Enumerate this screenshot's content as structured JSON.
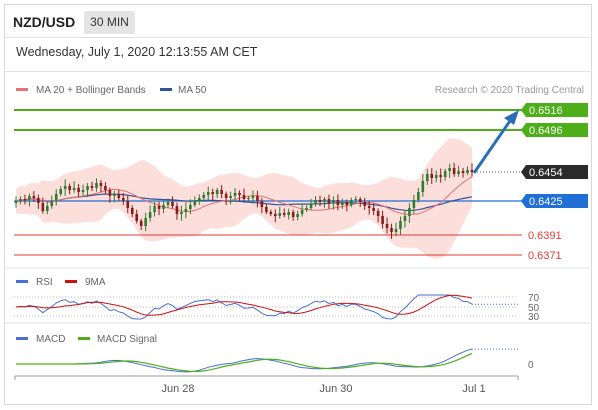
{
  "header": {
    "symbol": "NZD/USD",
    "timeframe": "30 MIN",
    "datetime": "Wednesday, July 1, 2020 12:13:55 AM CET"
  },
  "legend": {
    "ma20_bb": "MA 20 + Bollinger Bands",
    "ma50": "MA 50",
    "copyright": "Research © 2020 Trading Central"
  },
  "colors": {
    "up_candle": "#2e7d32",
    "down_candle": "#8b1a1a",
    "ma20": "#e57373",
    "ma50": "#2f5597",
    "bb_fill": "#fbd3cf",
    "target_line": "#4caf1a",
    "pivot_line": "#1f6fd6",
    "support_line": "#e53935",
    "arrow": "#2a6fb6",
    "rsi": "#4a6fd3",
    "rsi_ma": "#cc1111",
    "macd": "#4a6fd3",
    "macd_signal": "#4caf1a"
  },
  "levels": [
    {
      "value": 0.6516,
      "label": "0.6516",
      "kind": "target"
    },
    {
      "value": 0.6496,
      "label": "0.6496",
      "kind": "target"
    },
    {
      "value": 0.6454,
      "label": "0.6454",
      "kind": "last"
    },
    {
      "value": 0.6425,
      "label": "0.6425",
      "kind": "pivot"
    },
    {
      "value": 0.6391,
      "label": "0.6391",
      "kind": "support"
    },
    {
      "value": 0.6371,
      "label": "0.6371",
      "kind": "support"
    }
  ],
  "rsi_panel": {
    "legend": [
      "RSI",
      "9MA"
    ],
    "levels": [
      "70",
      "50",
      "30"
    ]
  },
  "macd_panel": {
    "legend": [
      "MACD",
      "MACD Signal"
    ],
    "zero_label": "0"
  },
  "x_axis": {
    "labels": [
      "Jun 28",
      "Jun 30",
      "Jul 1"
    ]
  },
  "chart_data": {
    "type": "candlestick",
    "title": "NZD/USD",
    "timeframe": "30 MIN",
    "x_labels": [
      "Jun 28",
      "Jun 30",
      "Jul 1"
    ],
    "price_range": [
      0.636,
      0.653
    ],
    "last_price": 0.6454,
    "pivot": 0.6425,
    "targets": [
      0.6496,
      0.6516
    ],
    "supports": [
      0.6391,
      0.6371
    ],
    "close_series": [
      0.6425,
      0.6427,
      0.6426,
      0.643,
      0.6428,
      0.6423,
      0.6415,
      0.642,
      0.6425,
      0.6432,
      0.6437,
      0.644,
      0.6436,
      0.6438,
      0.6434,
      0.6436,
      0.644,
      0.6438,
      0.6443,
      0.644,
      0.6436,
      0.643,
      0.6432,
      0.6428,
      0.6425,
      0.6418,
      0.6412,
      0.6405,
      0.64,
      0.6408,
      0.6414,
      0.642,
      0.6417,
      0.6421,
      0.6424,
      0.642,
      0.6412,
      0.6414,
      0.6417,
      0.6421,
      0.6425,
      0.6428,
      0.6431,
      0.6434,
      0.6432,
      0.6436,
      0.6432,
      0.6428,
      0.643,
      0.6433,
      0.6431,
      0.6427,
      0.6428,
      0.643,
      0.6425,
      0.6419,
      0.6414,
      0.6412,
      0.641,
      0.6413,
      0.6411,
      0.6414,
      0.6409,
      0.6412,
      0.6416,
      0.6418,
      0.6422,
      0.6426,
      0.6424,
      0.6427,
      0.6423,
      0.6426,
      0.6421,
      0.6424,
      0.6421,
      0.6426,
      0.6427,
      0.6424,
      0.642,
      0.6418,
      0.6415,
      0.641,
      0.6402,
      0.6398,
      0.6394,
      0.6397,
      0.6405,
      0.641,
      0.6418,
      0.6426,
      0.6434,
      0.6445,
      0.6452,
      0.6448,
      0.6451,
      0.6449,
      0.6455,
      0.6458,
      0.6452,
      0.6455,
      0.6453,
      0.6456,
      0.6454
    ]
  }
}
